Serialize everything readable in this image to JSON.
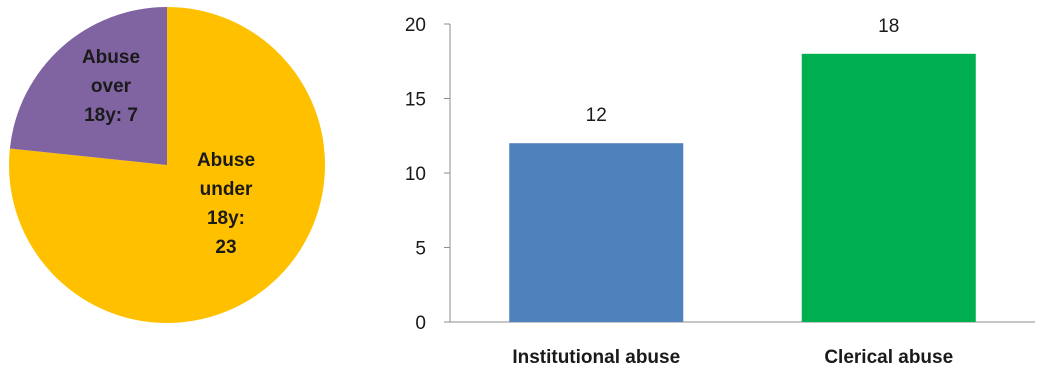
{
  "chart_data": [
    {
      "type": "pie",
      "slices": [
        {
          "label_lines": [
            "Abuse",
            "under",
            "18y:",
            "23"
          ],
          "value": 23,
          "color": "#FFC000"
        },
        {
          "label_lines": [
            "Abuse",
            "over",
            "18y: 7"
          ],
          "value": 7,
          "color": "#8064A2"
        }
      ]
    },
    {
      "type": "bar",
      "categories": [
        "Institutional abuse",
        "Clerical abuse"
      ],
      "values": [
        12,
        18
      ],
      "data_labels": [
        "12",
        "18"
      ],
      "colors": [
        "#4F81BD",
        "#00B050"
      ],
      "ylim": [
        0,
        20
      ],
      "yticks": [
        0,
        5,
        10,
        15,
        20
      ],
      "ytick_labels": [
        "0",
        "5",
        "10",
        "15",
        "20"
      ],
      "grid": false,
      "legend": "none"
    }
  ]
}
